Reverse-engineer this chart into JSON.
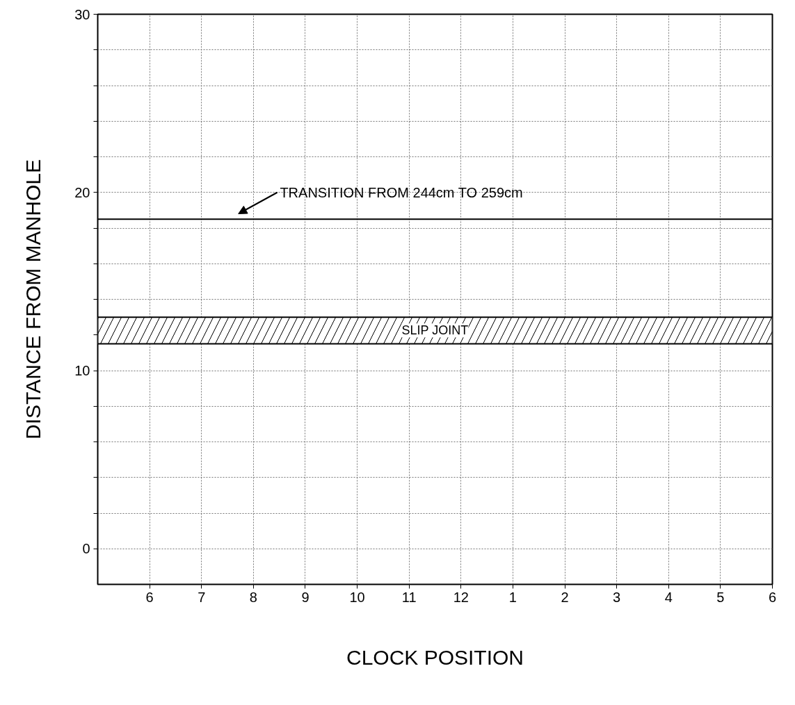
{
  "chart_data": {
    "type": "line",
    "xlabel": "CLOCK POSITION",
    "ylabel": "DISTANCE FROM MANHOLE",
    "categories": [
      "6",
      "7",
      "8",
      "9",
      "10",
      "11",
      "12",
      "1",
      "2",
      "3",
      "4",
      "5",
      "6"
    ],
    "ylim": [
      -2,
      30
    ],
    "yticks": [
      0,
      {
        "value": 2,
        "label": null
      },
      {
        "value": 4,
        "label": null
      },
      {
        "value": 6,
        "label": null
      },
      {
        "value": 8,
        "label": null
      },
      10,
      {
        "value": 12,
        "label": null
      },
      {
        "value": 14,
        "label": null
      },
      {
        "value": 16,
        "label": null
      },
      {
        "value": 18,
        "label": null
      },
      20,
      {
        "value": 22,
        "label": null
      },
      {
        "value": 24,
        "label": null
      },
      {
        "value": 26,
        "label": null
      },
      {
        "value": 28,
        "label": null
      },
      30
    ],
    "grid": true,
    "ref_lines": [
      {
        "axis": "y",
        "value": 18.5,
        "label": "TRANSITION FROM 244cm TO 259cm",
        "color": "#000000"
      }
    ],
    "bands": [
      {
        "axis": "y",
        "from": 11.5,
        "to": 13,
        "label": "SLIP JOINT",
        "color": "#000000"
      }
    ]
  }
}
